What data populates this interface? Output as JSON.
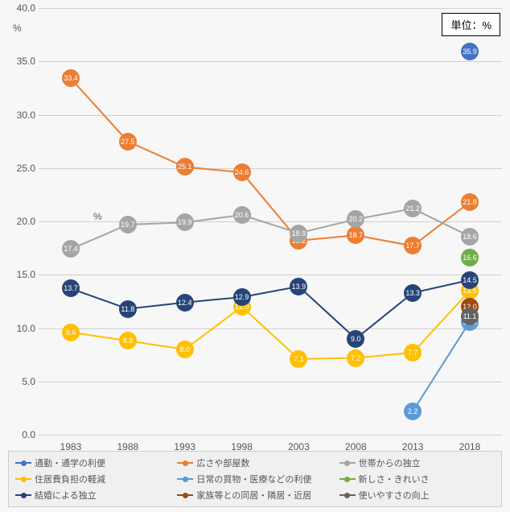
{
  "unit_label": "単位：%",
  "y_axis_symbol": "%",
  "chart": {
    "type": "line",
    "xlim": [
      1983,
      2018
    ],
    "ylim": [
      0,
      40
    ],
    "ytick_step": 5,
    "years": [
      1983,
      1988,
      1993,
      1998,
      2003,
      2008,
      2013,
      2018
    ],
    "background_color": "#f7f7f7",
    "grid_color": "#d0d0d0",
    "tick_fontsize": 12,
    "label_fontsize": 9,
    "marker_size": 22,
    "yticks": [
      "0.0",
      "5.0",
      "10.0",
      "15.0",
      "20.0",
      "25.0",
      "30.0",
      "35.0",
      "40.0"
    ],
    "series": [
      {
        "id": "commute",
        "label": "通勤・通学の利便",
        "color": "#4472c4",
        "values": [
          null,
          null,
          null,
          null,
          null,
          null,
          null,
          35.9
        ]
      },
      {
        "id": "space",
        "label": "広さや部屋数",
        "color": "#ed7d31",
        "values": [
          33.4,
          27.5,
          25.1,
          24.6,
          18.2,
          18.7,
          17.7,
          21.8
        ]
      },
      {
        "id": "independence",
        "label": "世帯からの独立",
        "color": "#a5a5a5",
        "values": [
          17.4,
          19.7,
          19.9,
          20.6,
          18.9,
          20.2,
          21.2,
          18.6
        ]
      },
      {
        "id": "housingcost",
        "label": "住居費負担の軽減",
        "color": "#ffc000",
        "values": [
          9.6,
          8.8,
          8.0,
          12.0,
          7.1,
          7.2,
          7.7,
          13.5
        ]
      },
      {
        "id": "shopping",
        "label": "日常の買物・医療などの利便",
        "color": "#5b9bd5",
        "values": [
          null,
          null,
          null,
          null,
          null,
          null,
          2.2,
          10.6
        ]
      },
      {
        "id": "newclean",
        "label": "新しさ・きれいさ",
        "color": "#70ad47",
        "values": [
          null,
          null,
          null,
          null,
          null,
          null,
          null,
          16.6
        ]
      },
      {
        "id": "marriage",
        "label": "結婚による独立",
        "color": "#264478",
        "values": [
          13.7,
          11.8,
          12.4,
          12.9,
          13.9,
          9.0,
          13.3,
          14.5
        ]
      },
      {
        "id": "family",
        "label": "家族等との同居・隣居・近居",
        "color": "#9e480e",
        "values": [
          null,
          null,
          null,
          null,
          null,
          null,
          null,
          12.0
        ]
      },
      {
        "id": "usability",
        "label": "使いやすさの向上",
        "color": "#636363",
        "values": [
          null,
          null,
          null,
          null,
          null,
          null,
          null,
          11.1
        ]
      }
    ]
  }
}
